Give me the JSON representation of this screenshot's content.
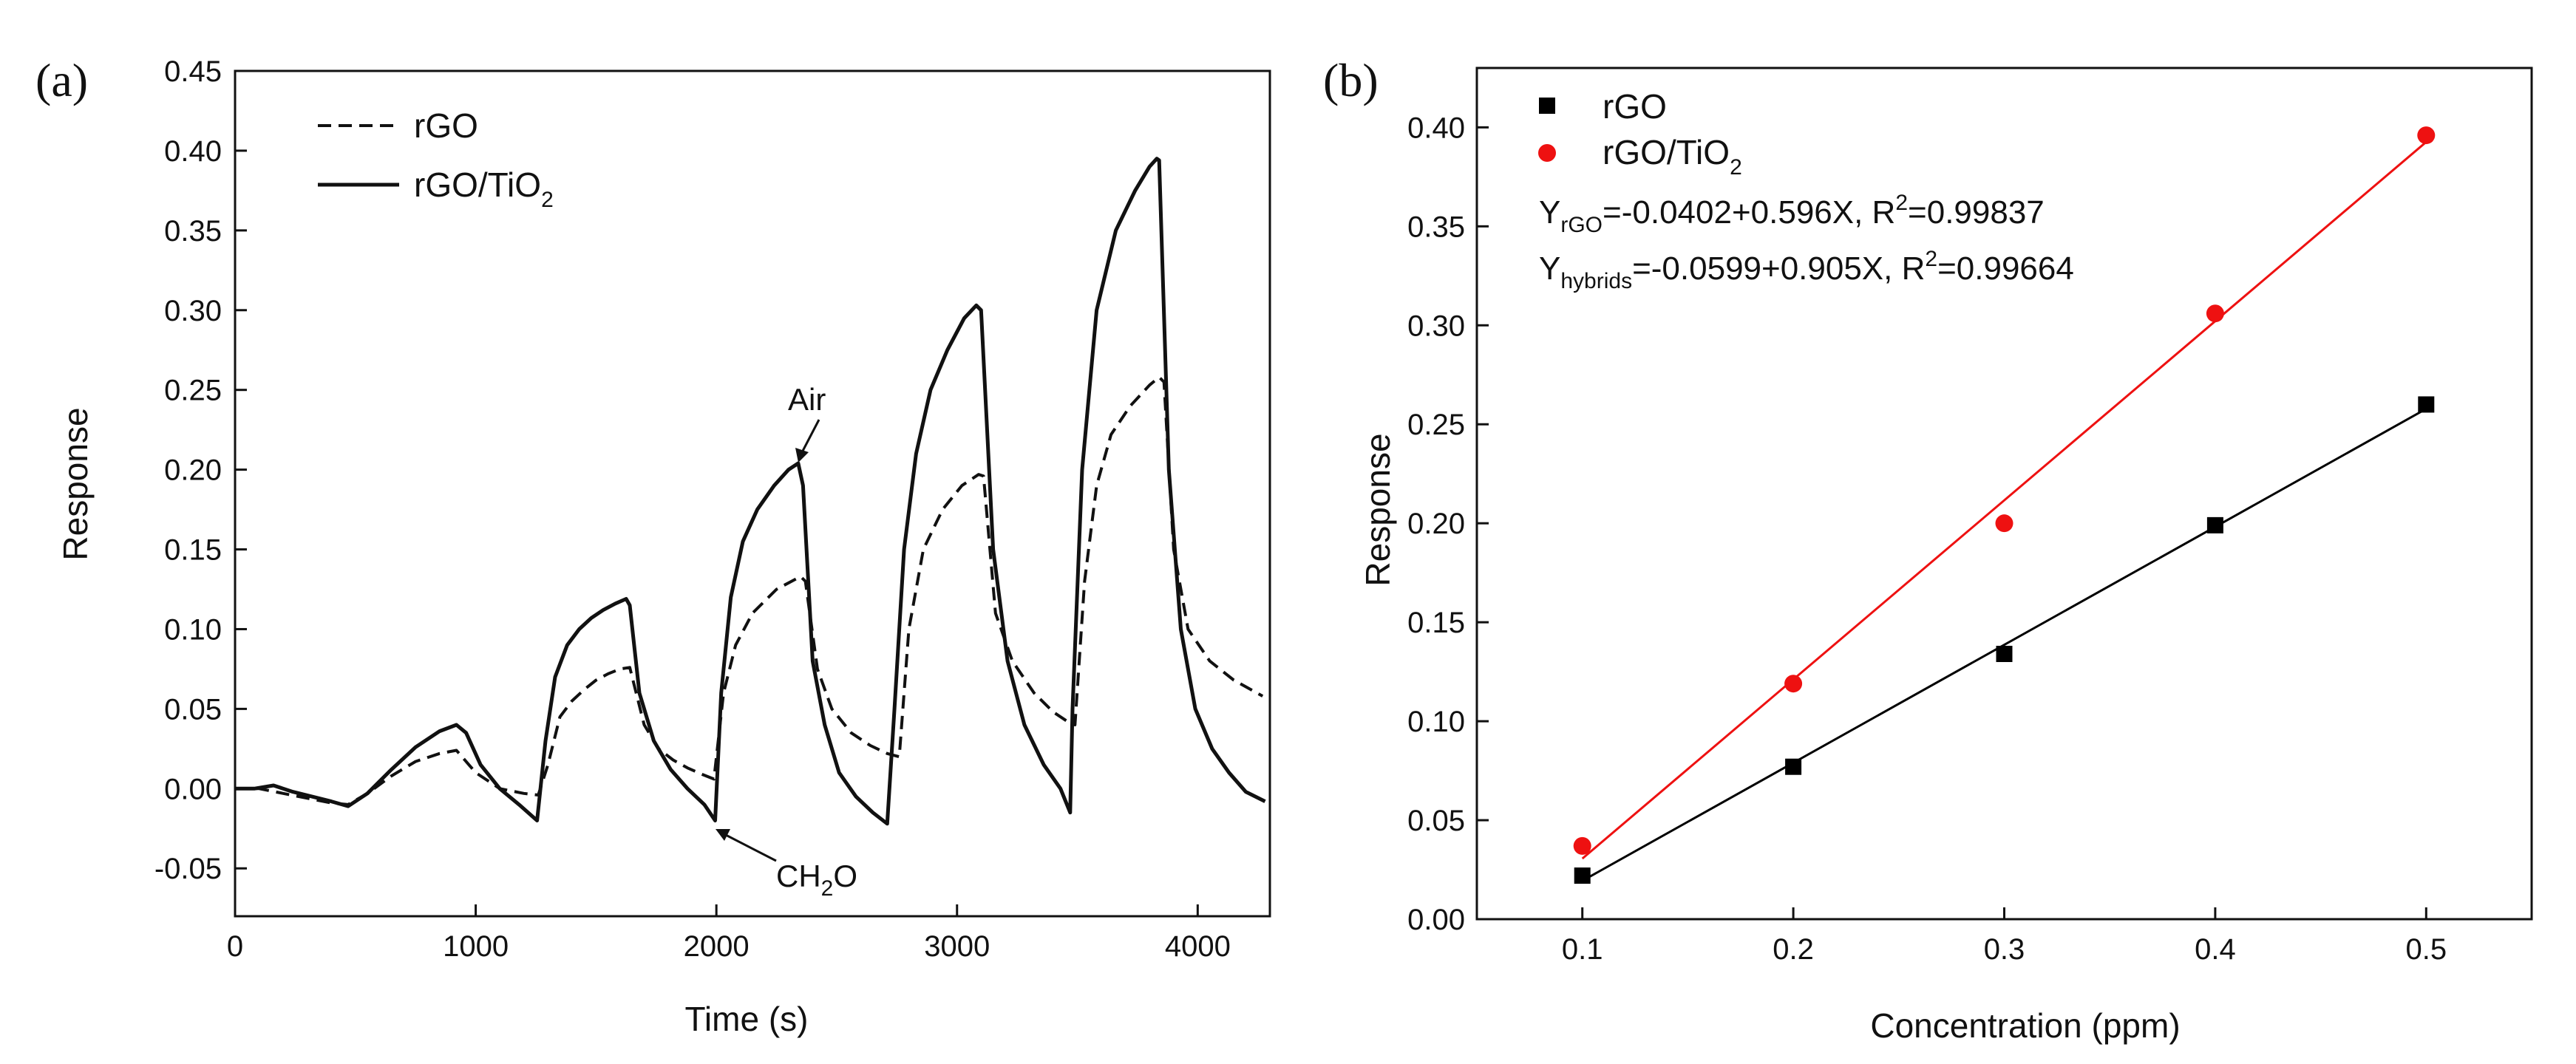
{
  "chart_data": [
    {
      "type": "line",
      "panel_label": "(a)",
      "xlabel": "Time (s)",
      "ylabel": "Response",
      "xlim": [
        0,
        4300
      ],
      "ylim": [
        -0.08,
        0.45
      ],
      "x_ticks": [
        "0",
        "1000",
        "2000",
        "3000",
        "4000"
      ],
      "x_tick_values": [
        0,
        1000,
        2000,
        3000,
        4000
      ],
      "y_ticks": [
        "-0.05",
        "0.00",
        "0.05",
        "0.10",
        "0.15",
        "0.20",
        "0.25",
        "0.30",
        "0.35",
        "0.40",
        "0.45"
      ],
      "y_tick_values": [
        -0.05,
        0,
        0.05,
        0.1,
        0.15,
        0.2,
        0.25,
        0.3,
        0.35,
        0.4,
        0.45
      ],
      "grid": false,
      "legend_position": "top-left",
      "annotations": [
        {
          "text": "Air",
          "x": 2330,
          "y": 0.205
        },
        {
          "text": "CH2O",
          "x": 1995,
          "y": -0.02
        }
      ],
      "series": [
        {
          "name": "rGO",
          "legend_main": "rGO",
          "legend_sub": "",
          "style": "dashed",
          "color": "#111111",
          "x": [
            0,
            100,
            200,
            300,
            400,
            470,
            550,
            650,
            750,
            850,
            920,
            1000,
            1100,
            1200,
            1260,
            1300,
            1350,
            1400,
            1450,
            1500,
            1550,
            1600,
            1640,
            1700,
            1760,
            1820,
            1880,
            1940,
            1990,
            2030,
            2080,
            2150,
            2250,
            2350,
            2370,
            2420,
            2480,
            2560,
            2640,
            2710,
            2760,
            2800,
            2860,
            2940,
            3020,
            3090,
            3110,
            3160,
            3230,
            3320,
            3400,
            3460,
            3490,
            3530,
            3580,
            3640,
            3720,
            3800,
            3840,
            3860,
            3900,
            3960,
            4050,
            4150,
            4270
          ],
          "y": [
            0.0,
            0.0,
            -0.003,
            -0.006,
            -0.009,
            -0.01,
            -0.003,
            0.008,
            0.017,
            0.022,
            0.024,
            0.01,
            0.0,
            -0.003,
            -0.004,
            0.015,
            0.045,
            0.055,
            0.062,
            0.068,
            0.072,
            0.075,
            0.076,
            0.04,
            0.025,
            0.018,
            0.013,
            0.009,
            0.006,
            0.06,
            0.09,
            0.11,
            0.125,
            0.133,
            0.13,
            0.075,
            0.05,
            0.035,
            0.027,
            0.022,
            0.02,
            0.1,
            0.15,
            0.175,
            0.19,
            0.197,
            0.196,
            0.11,
            0.08,
            0.06,
            0.048,
            0.042,
            0.04,
            0.13,
            0.19,
            0.222,
            0.24,
            0.253,
            0.258,
            0.255,
            0.15,
            0.1,
            0.08,
            0.068,
            0.058
          ]
        },
        {
          "name": "rGO/TiO2",
          "legend_main": "rGO/TiO",
          "legend_sub": "2",
          "style": "solid",
          "color": "#111111",
          "x": [
            0,
            80,
            160,
            240,
            320,
            400,
            470,
            550,
            650,
            750,
            850,
            920,
            960,
            1020,
            1100,
            1180,
            1255,
            1290,
            1330,
            1380,
            1430,
            1480,
            1530,
            1580,
            1625,
            1640,
            1680,
            1740,
            1810,
            1880,
            1950,
            1995,
            2020,
            2060,
            2110,
            2170,
            2240,
            2300,
            2340,
            2360,
            2400,
            2450,
            2510,
            2580,
            2650,
            2710,
            2740,
            2780,
            2830,
            2890,
            2960,
            3030,
            3080,
            3100,
            3150,
            3210,
            3280,
            3360,
            3430,
            3470,
            3480,
            3520,
            3580,
            3660,
            3740,
            3800,
            3830,
            3840,
            3880,
            3930,
            3990,
            4060,
            4130,
            4200,
            4280
          ],
          "y": [
            0.0,
            0.0,
            0.002,
            -0.002,
            -0.005,
            -0.008,
            -0.011,
            -0.003,
            0.012,
            0.026,
            0.036,
            0.04,
            0.035,
            0.015,
            0.0,
            -0.01,
            -0.02,
            0.03,
            0.07,
            0.09,
            0.1,
            0.107,
            0.112,
            0.116,
            0.119,
            0.115,
            0.06,
            0.03,
            0.012,
            0.0,
            -0.01,
            -0.02,
            0.06,
            0.12,
            0.155,
            0.175,
            0.19,
            0.2,
            0.204,
            0.19,
            0.08,
            0.04,
            0.01,
            -0.005,
            -0.015,
            -0.022,
            0.05,
            0.15,
            0.21,
            0.25,
            0.275,
            0.295,
            0.303,
            0.3,
            0.15,
            0.08,
            0.04,
            0.015,
            0.0,
            -0.015,
            0.05,
            0.2,
            0.3,
            0.35,
            0.375,
            0.39,
            0.395,
            0.394,
            0.2,
            0.1,
            0.05,
            0.025,
            0.01,
            -0.002,
            -0.008
          ]
        }
      ]
    },
    {
      "type": "scatter",
      "panel_label": "(b)",
      "xlabel": "Concentration (ppm)",
      "ylabel": "Response",
      "xlim": [
        0.05,
        0.55
      ],
      "ylim": [
        0,
        0.43
      ],
      "x_ticks": [
        "0.1",
        "0.2",
        "0.3",
        "0.4",
        "0.5"
      ],
      "x_tick_values": [
        0.1,
        0.2,
        0.3,
        0.4,
        0.5
      ],
      "y_ticks": [
        "0.00",
        "0.05",
        "0.10",
        "0.15",
        "0.20",
        "0.25",
        "0.30",
        "0.35",
        "0.40"
      ],
      "y_tick_values": [
        0,
        0.05,
        0.1,
        0.15,
        0.2,
        0.25,
        0.3,
        0.35,
        0.4
      ],
      "grid": false,
      "legend_position": "top-left",
      "equations": [
        {
          "y_main": "Y",
          "y_sub": "rGO",
          "rest": "=-0.0402+0.596X, R",
          "sup": "2",
          "tail": "=0.99837"
        },
        {
          "y_main": "Y",
          "y_sub": "hybrids",
          "rest": "=-0.0599+0.905X, R",
          "sup": "2",
          "tail": "=0.99664"
        }
      ],
      "series": [
        {
          "name": "rGO",
          "legend_main": "rGO",
          "legend_sub": "",
          "marker": "square",
          "color": "#000000",
          "line_color": "#000000",
          "x": [
            0.1,
            0.2,
            0.3,
            0.4,
            0.5
          ],
          "y": [
            0.022,
            0.077,
            0.134,
            0.199,
            0.26
          ],
          "fit": {
            "intercept": -0.0402,
            "slope": 0.596
          }
        },
        {
          "name": "rGO/TiO2",
          "legend_main": "rGO/TiO",
          "legend_sub": "2",
          "marker": "circle",
          "color": "#ee1111",
          "line_color": "#ee1111",
          "x": [
            0.1,
            0.2,
            0.3,
            0.4,
            0.5
          ],
          "y": [
            0.037,
            0.119,
            0.2,
            0.306,
            0.396
          ],
          "fit": {
            "intercept": -0.0599,
            "slope": 0.905
          }
        }
      ]
    }
  ]
}
